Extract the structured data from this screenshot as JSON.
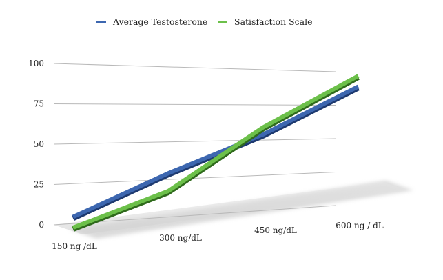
{
  "chart_data": {
    "type": "line",
    "title": "",
    "xlabel": "",
    "ylabel": "",
    "categories": [
      "150 ng /dL",
      "300 ng/dL",
      "450 ng/dL",
      "600 ng  /  dL"
    ],
    "ylim": [
      0,
      100
    ],
    "yticks": [
      "0",
      "25",
      "50",
      "75",
      "100"
    ],
    "grid": true,
    "legend_position": "top",
    "series": [
      {
        "name": "Average Testosterone",
        "color": "#3d67b0",
        "dark_color": "#1e3a70",
        "values": [
          5,
          30,
          55,
          90
        ]
      },
      {
        "name": "Satisfaction Scale",
        "color": "#6cc04a",
        "dark_color": "#2f6a1c",
        "values": [
          0,
          20,
          62,
          100
        ]
      }
    ]
  }
}
